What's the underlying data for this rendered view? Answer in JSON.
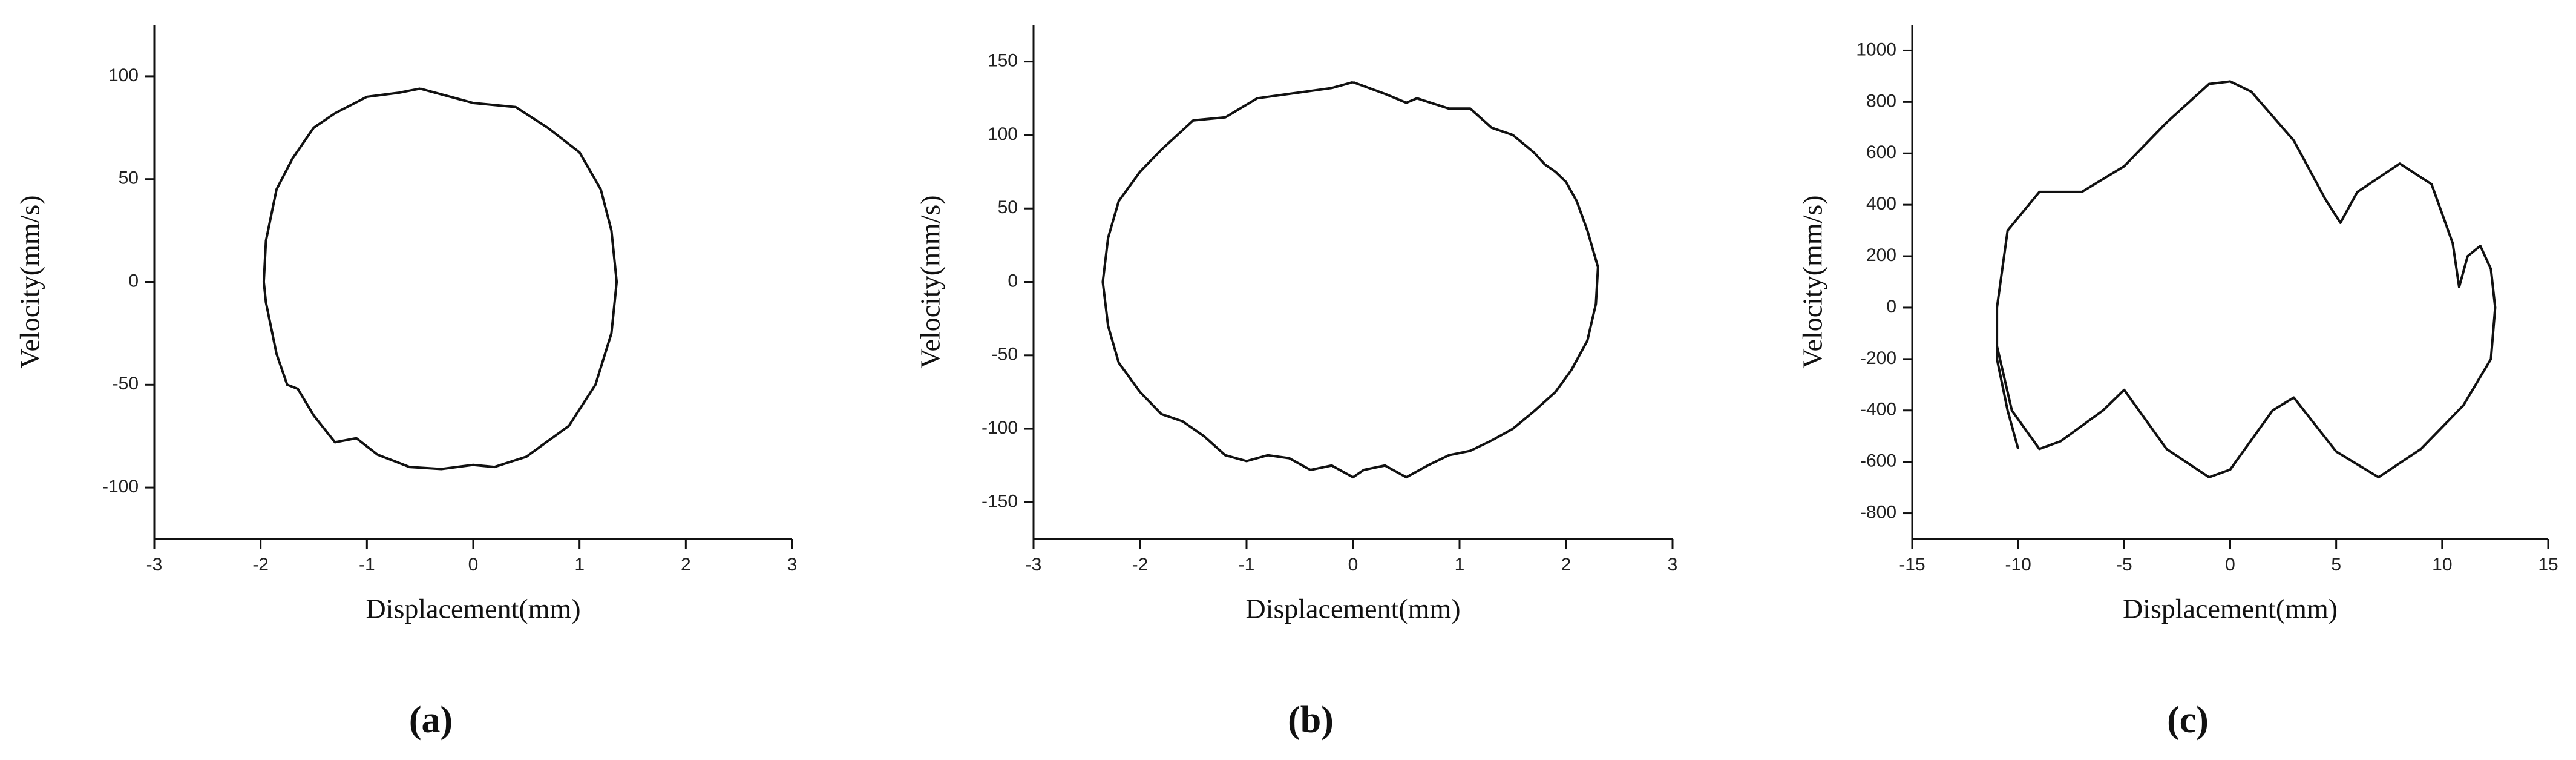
{
  "chart_data": [
    {
      "type": "line",
      "label": "(a)",
      "xlabel": "Displacement(mm)",
      "ylabel": "Velocity(mm/s)",
      "color": "#111111",
      "xlim": [
        -3,
        3
      ],
      "xticks": [
        -3,
        -2,
        -1,
        0,
        1,
        2,
        3
      ],
      "ylim": [
        -125,
        125
      ],
      "yticks": [
        -100,
        -50,
        0,
        50,
        100
      ],
      "x": [
        -0.5,
        0,
        0.4,
        0.7,
        1.0,
        1.2,
        1.3,
        1.35,
        1.3,
        1.15,
        0.9,
        0.5,
        0.2,
        0,
        -0.3,
        -0.6,
        -0.9,
        -1.1,
        -1.3,
        -1.5,
        -1.65,
        -1.75,
        -1.85,
        -1.95,
        -1.97,
        -1.95,
        -1.85,
        -1.7,
        -1.5,
        -1.3,
        -1.0,
        -0.7,
        -0.5
      ],
      "values": [
        94,
        87,
        85,
        75,
        63,
        45,
        25,
        0,
        -25,
        -50,
        -70,
        -85,
        -90,
        -89,
        -91,
        -90,
        -84,
        -76,
        -78,
        -65,
        -52,
        -50,
        -35,
        -10,
        0,
        20,
        45,
        60,
        75,
        82,
        90,
        92,
        94
      ]
    },
    {
      "type": "line",
      "label": "(b)",
      "xlabel": "Displacement(mm)",
      "ylabel": "Velocity(mm/s)",
      "color": "#111111",
      "xlim": [
        -3,
        3
      ],
      "xticks": [
        -3,
        -2,
        -1,
        0,
        1,
        2,
        3
      ],
      "ylim": [
        -175,
        175
      ],
      "yticks": [
        -150,
        -100,
        -50,
        0,
        50,
        100,
        150
      ],
      "x": [
        0,
        0.3,
        0.5,
        0.6,
        0.9,
        1.1,
        1.3,
        1.5,
        1.7,
        1.8,
        1.9,
        2.0,
        2.1,
        2.2,
        2.3,
        2.28,
        2.2,
        2.05,
        1.9,
        1.7,
        1.5,
        1.3,
        1.1,
        0.9,
        0.7,
        0.5,
        0.3,
        0.1,
        0,
        -0.2,
        -0.4,
        -0.6,
        -0.8,
        -1.0,
        -1.2,
        -1.4,
        -1.6,
        -1.8,
        -2.0,
        -2.2,
        -2.3,
        -2.35,
        -2.3,
        -2.2,
        -2.0,
        -1.8,
        -1.5,
        -1.2,
        -0.9,
        -0.6,
        -0.4,
        -0.2,
        0
      ],
      "values": [
        136,
        128,
        122,
        125,
        118,
        118,
        105,
        100,
        88,
        80,
        75,
        68,
        55,
        35,
        10,
        -15,
        -40,
        -60,
        -75,
        -88,
        -100,
        -108,
        -115,
        -118,
        -125,
        -133,
        -125,
        -128,
        -133,
        -125,
        -128,
        -120,
        -118,
        -122,
        -118,
        -105,
        -95,
        -90,
        -75,
        -55,
        -30,
        0,
        30,
        55,
        75,
        90,
        110,
        112,
        125,
        128,
        130,
        132,
        136
      ]
    },
    {
      "type": "line",
      "label": "(c)",
      "xlabel": "Displacement(mm)",
      "ylabel": "Velocity(mm/s)",
      "color": "#111111",
      "xlim": [
        -15,
        15
      ],
      "xticks": [
        -15,
        -10,
        -5,
        0,
        5,
        10,
        15
      ],
      "ylim": [
        -900,
        1100
      ],
      "yticks": [
        -800,
        -600,
        -400,
        -200,
        0,
        200,
        400,
        600,
        800,
        1000
      ],
      "x": [
        -10,
        -10.5,
        -11,
        -11,
        -10.5,
        -9,
        -7,
        -5,
        -3,
        -1,
        0,
        1,
        3,
        4.5,
        5.2,
        6,
        8,
        9.5,
        10.5,
        10.8,
        11.2,
        11.8,
        12.3,
        12.5,
        12.3,
        11,
        9,
        7,
        5,
        3,
        2,
        0,
        -1,
        -3,
        -5,
        -6,
        -8,
        -9,
        -10.3,
        -11
      ],
      "values": [
        -550,
        -400,
        -200,
        0,
        300,
        450,
        450,
        550,
        720,
        870,
        880,
        840,
        650,
        420,
        330,
        450,
        560,
        480,
        250,
        80,
        200,
        240,
        150,
        0,
        -200,
        -380,
        -550,
        -660,
        -560,
        -350,
        -400,
        -630,
        -660,
        -550,
        -320,
        -400,
        -520,
        -550,
        -400,
        -150
      ]
    }
  ]
}
